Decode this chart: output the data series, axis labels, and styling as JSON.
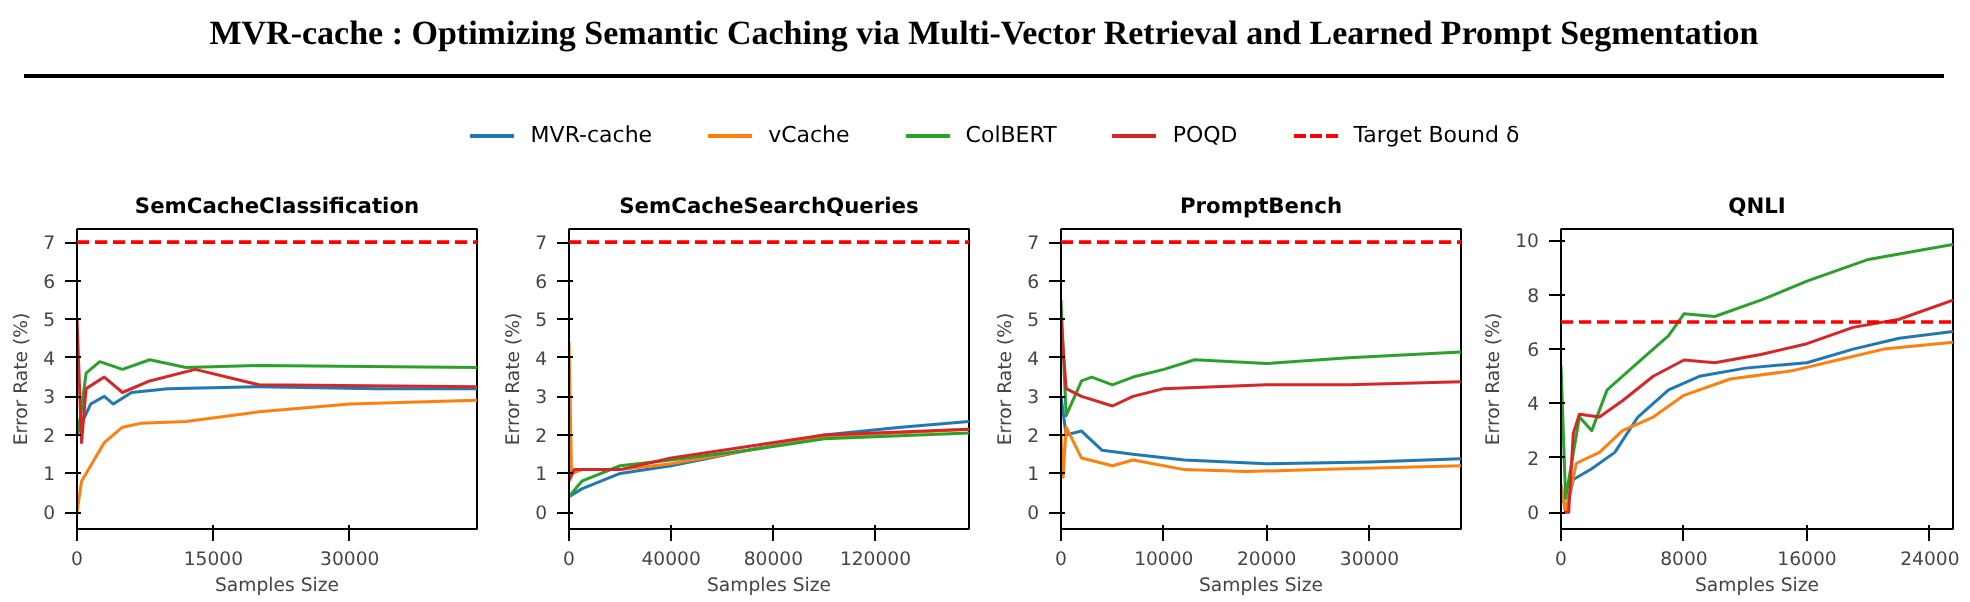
{
  "chart_data": [
    {
      "type": "line",
      "title": "SemCacheClassification",
      "xlabel": "Samples Size",
      "ylabel": "Error Rate (%)",
      "annotations": [
        "MVR-cache : Optimizing Semantic Caching via Multi-Vector Retrieval and Learned Prompt Segmentation"
      ],
      "legend": "top",
      "xlim": [
        0,
        44000
      ],
      "ylim": [
        -0.44,
        7.34
      ],
      "xticks": [
        0,
        15000,
        30000
      ],
      "yticks": [
        0,
        1,
        2,
        3,
        4,
        5,
        6,
        7
      ],
      "series": [
        {
          "name": "MVR-cache",
          "color": "#1f77b4",
          "x": [
            0,
            500,
            1500,
            3000,
            4000,
            6000,
            10000,
            20000,
            33000,
            44000
          ],
          "values": [
            2.0,
            2.3,
            2.8,
            3.0,
            2.8,
            3.1,
            3.2,
            3.25,
            3.2,
            3.2
          ]
        },
        {
          "name": "vCache",
          "color": "#ff7f0e",
          "x": [
            0,
            500,
            1500,
            3000,
            5000,
            7000,
            12000,
            20000,
            30000,
            44000
          ],
          "values": [
            0,
            0.8,
            1.2,
            1.8,
            2.2,
            2.3,
            2.35,
            2.6,
            2.8,
            2.9
          ]
        },
        {
          "name": "ColBERT",
          "color": "#2ca02c",
          "x": [
            0,
            400,
            1000,
            2500,
            5000,
            8000,
            12000,
            20000,
            44000
          ],
          "values": [
            2.0,
            2.5,
            3.6,
            3.9,
            3.7,
            3.95,
            3.75,
            3.8,
            3.75
          ]
        },
        {
          "name": "POQD",
          "color": "#d62728",
          "x": [
            0,
            500,
            1000,
            3000,
            5000,
            8000,
            13000,
            20000,
            44000
          ],
          "values": [
            5.0,
            1.8,
            3.2,
            3.5,
            3.1,
            3.4,
            3.7,
            3.3,
            3.25
          ]
        }
      ],
      "ref_lines": [
        {
          "axis": "y",
          "value": 7,
          "label": "Target Bound δ",
          "color": "#ff0000",
          "line_style": "dashed"
        }
      ]
    },
    {
      "type": "line",
      "title": "SemCacheSearchQueries",
      "xlabel": "Samples Size",
      "ylabel": "Error Rate (%)",
      "xlim": [
        0,
        156600
      ],
      "ylim": [
        -0.44,
        7.34
      ],
      "xticks": [
        0,
        40000,
        80000,
        120000
      ],
      "yticks": [
        0,
        1,
        2,
        3,
        4,
        5,
        6,
        7
      ],
      "series": [
        {
          "color": "#1f77b4",
          "x": [
            0,
            5000,
            20000,
            40000,
            70000,
            100000,
            130000,
            156600
          ],
          "values": [
            0.4,
            0.6,
            1.0,
            1.2,
            1.6,
            2.0,
            2.2,
            2.35
          ]
        },
        {
          "color": "#ff7f0e",
          "x": [
            0,
            1000,
            5000,
            20000,
            40000,
            70000,
            100000,
            156600
          ],
          "values": [
            4.4,
            1.0,
            1.1,
            1.1,
            1.25,
            1.6,
            1.95,
            2.15
          ]
        },
        {
          "color": "#2ca02c",
          "x": [
            0,
            5000,
            20000,
            40000,
            70000,
            100000,
            156600
          ],
          "values": [
            0.4,
            0.8,
            1.2,
            1.35,
            1.6,
            1.9,
            2.05
          ]
        },
        {
          "color": "#d62728",
          "x": [
            0,
            2000,
            20000,
            40000,
            70000,
            100000,
            156600
          ],
          "values": [
            0.8,
            1.1,
            1.1,
            1.4,
            1.7,
            2.0,
            2.15
          ]
        }
      ],
      "ref_lines": [
        {
          "axis": "y",
          "value": 7,
          "color": "#ff0000",
          "line_style": "dashed"
        }
      ]
    },
    {
      "type": "line",
      "title": "PromptBench",
      "xlabel": "Samples Size",
      "ylabel": "Error Rate (%)",
      "xlim": [
        0,
        38900
      ],
      "ylim": [
        -0.44,
        7.34
      ],
      "xticks": [
        0,
        10000,
        20000,
        30000
      ],
      "yticks": [
        0,
        1,
        2,
        3,
        4,
        5,
        6,
        7
      ],
      "series": [
        {
          "color": "#1f77b4",
          "x": [
            0,
            500,
            2000,
            4000,
            7000,
            12000,
            20000,
            30000,
            38900
          ],
          "values": [
            3.0,
            2.0,
            2.1,
            1.6,
            1.5,
            1.35,
            1.25,
            1.3,
            1.38
          ]
        },
        {
          "color": "#ff7f0e",
          "x": [
            0,
            200,
            500,
            2000,
            5000,
            7000,
            12000,
            18000,
            25000,
            38900
          ],
          "values": [
            2.0,
            0.9,
            2.2,
            1.4,
            1.2,
            1.35,
            1.1,
            1.05,
            1.1,
            1.2
          ]
        },
        {
          "color": "#2ca02c",
          "x": [
            0,
            500,
            2000,
            3000,
            5000,
            7000,
            10000,
            13000,
            20000,
            28000,
            38900
          ],
          "values": [
            5.5,
            2.5,
            3.4,
            3.5,
            3.3,
            3.5,
            3.7,
            3.95,
            3.85,
            4.0,
            4.15
          ]
        },
        {
          "color": "#d62728",
          "x": [
            0,
            500,
            2000,
            5000,
            7000,
            10000,
            20000,
            28000,
            38900
          ],
          "values": [
            5.0,
            3.2,
            3.0,
            2.75,
            3.0,
            3.2,
            3.3,
            3.3,
            3.38
          ]
        }
      ],
      "ref_lines": [
        {
          "axis": "y",
          "value": 7,
          "color": "#ff0000",
          "line_style": "dashed"
        }
      ]
    },
    {
      "type": "line",
      "title": "QNLI",
      "xlabel": "Samples Size",
      "ylabel": "Error Rate (%)",
      "xlim": [
        0,
        25500
      ],
      "ylim": [
        -0.62,
        10.42
      ],
      "xticks": [
        0,
        8000,
        16000,
        24000
      ],
      "yticks": [
        0,
        2,
        4,
        6,
        8,
        10
      ],
      "series": [
        {
          "color": "#1f77b4",
          "x": [
            0,
            300,
            800,
            2000,
            3500,
            5000,
            7000,
            9000,
            12000,
            16000,
            19000,
            22000,
            25500
          ],
          "values": [
            1.0,
            0,
            1.2,
            1.6,
            2.2,
            3.5,
            4.5,
            5.0,
            5.3,
            5.5,
            6.0,
            6.4,
            6.65
          ]
        },
        {
          "color": "#ff7f0e",
          "x": [
            0,
            300,
            1000,
            2500,
            4000,
            6000,
            8000,
            11000,
            15000,
            18000,
            21000,
            25500
          ],
          "values": [
            1.0,
            0,
            1.8,
            2.2,
            3.0,
            3.5,
            4.3,
            4.9,
            5.2,
            5.6,
            6.0,
            6.25
          ]
        },
        {
          "color": "#2ca02c",
          "x": [
            0,
            300,
            1200,
            2000,
            3000,
            5000,
            7000,
            8000,
            10000,
            13000,
            16000,
            20000,
            23000,
            25500
          ],
          "values": [
            5.4,
            0.5,
            3.5,
            3.0,
            4.5,
            5.5,
            6.5,
            7.3,
            7.2,
            7.8,
            8.5,
            9.3,
            9.6,
            9.85
          ]
        },
        {
          "color": "#d62728",
          "x": [
            200,
            500,
            800,
            1200,
            2500,
            4000,
            6000,
            8000,
            10000,
            13000,
            16000,
            19000,
            22000,
            25500
          ],
          "values": [
            0,
            0,
            2.9,
            3.6,
            3.5,
            4.1,
            5.0,
            5.6,
            5.5,
            5.8,
            6.2,
            6.8,
            7.1,
            7.8
          ]
        }
      ],
      "ref_lines": [
        {
          "axis": "y",
          "value": 7,
          "color": "#ff0000",
          "line_style": "dashed"
        }
      ]
    }
  ]
}
